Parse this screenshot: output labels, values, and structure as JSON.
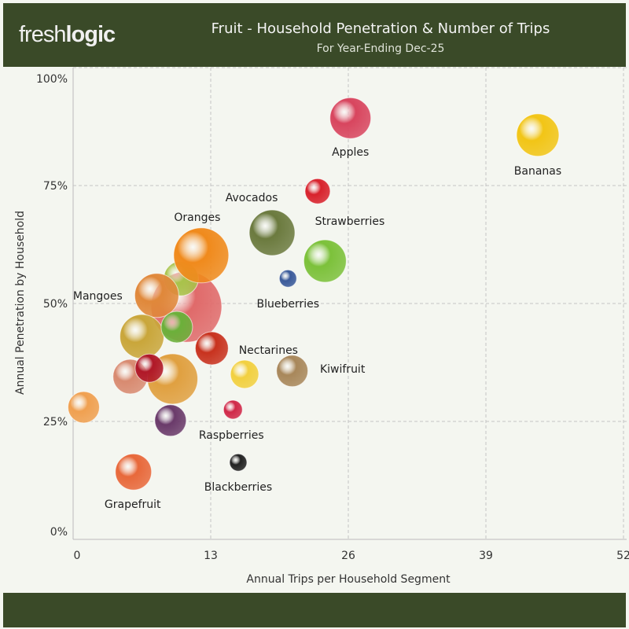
{
  "header": {
    "logo_light": "fresh",
    "logo_bold": "logic",
    "title": "Fruit - Household Penetration & Number of Trips",
    "subtitle": "For Year-Ending Dec-25"
  },
  "chart_data": {
    "type": "scatter",
    "title": "Fruit - Household Penetration & Number of Trips",
    "subtitle": "For Year-Ending Dec-25",
    "xlabel": "Annual Trips per Household Segment",
    "ylabel": "Annual Penetration by Household",
    "xlim": [
      0,
      52
    ],
    "ylim": [
      0,
      100
    ],
    "x_ticks": [
      "0",
      "13",
      "26",
      "39",
      "52"
    ],
    "y_ticks": [
      "0%",
      "25%",
      "50%",
      "75%",
      "100%"
    ],
    "grid": true,
    "points": [
      {
        "label": "Bananas",
        "x": 43.9,
        "y": 85.7,
        "size": 27,
        "color": "#f2c516"
      },
      {
        "label": "Apples",
        "x": 26.2,
        "y": 89.3,
        "size": 26,
        "color": "#d8455e"
      },
      {
        "label": "Strawberries",
        "x": 23.1,
        "y": 73.8,
        "size": 16,
        "color": "#d8222c"
      },
      {
        "label": "Avocados",
        "x": 18.8,
        "y": 65.0,
        "size": 29,
        "color": "#6b7a3e"
      },
      {
        "label": "",
        "x": 23.8,
        "y": 59.0,
        "size": 27,
        "color": "#7cc13a"
      },
      {
        "label": "Blueberries",
        "x": 20.3,
        "y": 55.3,
        "size": 11,
        "color": "#3a5a9a"
      },
      {
        "label": "",
        "x": 10.7,
        "y": 49.3,
        "size": 45,
        "color": "#e06a6a"
      },
      {
        "label": "",
        "x": 10.2,
        "y": 55.3,
        "size": 22,
        "color": "#a8c34a"
      },
      {
        "label": "Oranges",
        "x": 12.1,
        "y": 60.2,
        "size": 35,
        "color": "#f08a1c"
      },
      {
        "label": "Mangoes",
        "x": 7.9,
        "y": 51.7,
        "size": 28,
        "color": "#e0883a"
      },
      {
        "label": "",
        "x": 6.5,
        "y": 43.0,
        "size": 28,
        "color": "#c9a63a"
      },
      {
        "label": "",
        "x": 9.8,
        "y": 45.0,
        "size": 20,
        "color": "#6bb03a"
      },
      {
        "label": "Nectarines",
        "x": 13.1,
        "y": 40.5,
        "size": 21,
        "color": "#c8321e"
      },
      {
        "label": "",
        "x": 16.2,
        "y": 35.0,
        "size": 18,
        "color": "#f2d040"
      },
      {
        "label": "Kiwifruit",
        "x": 20.7,
        "y": 35.7,
        "size": 20,
        "color": "#a8875a"
      },
      {
        "label": "",
        "x": 5.4,
        "y": 34.5,
        "size": 22,
        "color": "#d88a70"
      },
      {
        "label": "",
        "x": 9.4,
        "y": 34.0,
        "size": 32,
        "color": "#e0a040"
      },
      {
        "label": "",
        "x": 7.2,
        "y": 36.3,
        "size": 18,
        "color": "#b01828"
      },
      {
        "label": "",
        "x": 1.0,
        "y": 28.0,
        "size": 20,
        "color": "#f0a050"
      },
      {
        "label": "",
        "x": 9.2,
        "y": 25.2,
        "size": 20,
        "color": "#6a3a6a"
      },
      {
        "label": "Raspberries",
        "x": 15.1,
        "y": 27.5,
        "size": 12,
        "color": "#d02848"
      },
      {
        "label": "Blackberries",
        "x": 15.6,
        "y": 16.3,
        "size": 11,
        "color": "#222222"
      },
      {
        "label": "Grapefruit",
        "x": 5.7,
        "y": 14.3,
        "size": 23,
        "color": "#e8683a"
      }
    ]
  }
}
